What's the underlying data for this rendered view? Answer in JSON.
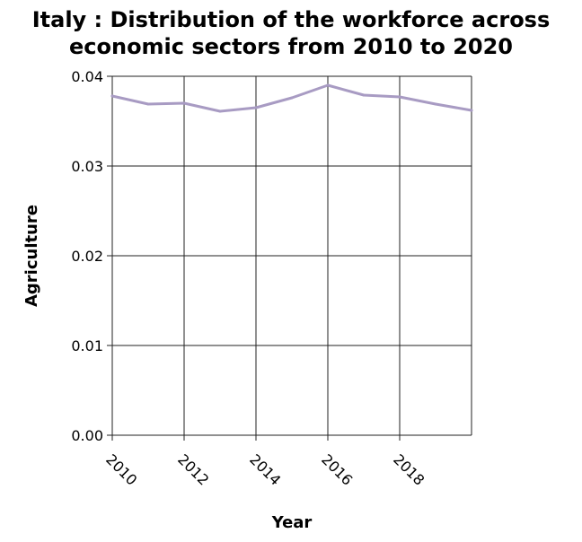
{
  "chart_data": {
    "type": "line",
    "title": "Italy : Distribution of the workforce across economic sectors from 2010 to 2020",
    "title_lines": [
      "Italy : Distribution of the workforce across",
      "economic sectors from 2010 to 2020"
    ],
    "xlabel": "Year",
    "ylabel": "Agriculture",
    "x": [
      2010,
      2011,
      2012,
      2013,
      2014,
      2015,
      2016,
      2017,
      2018,
      2019,
      2020
    ],
    "series": [
      {
        "values": [
          0.0378,
          0.0369,
          0.037,
          0.0361,
          0.0365,
          0.0376,
          0.039,
          0.0379,
          0.0377,
          0.0369,
          0.0362
        ],
        "color": "#a89bc3"
      }
    ],
    "xlim": [
      2010,
      2020
    ],
    "ylim": [
      0,
      0.04
    ],
    "xticks": [
      2010,
      2012,
      2014,
      2016,
      2018
    ],
    "xtick_labels": [
      "2010",
      "2012",
      "2014",
      "2016",
      "2018"
    ],
    "yticks": [
      0,
      0.01,
      0.02,
      0.03,
      0.04
    ],
    "ytick_labels": [
      "0.00",
      "0.01",
      "0.02",
      "0.03",
      "0.04"
    ],
    "grid": true
  }
}
